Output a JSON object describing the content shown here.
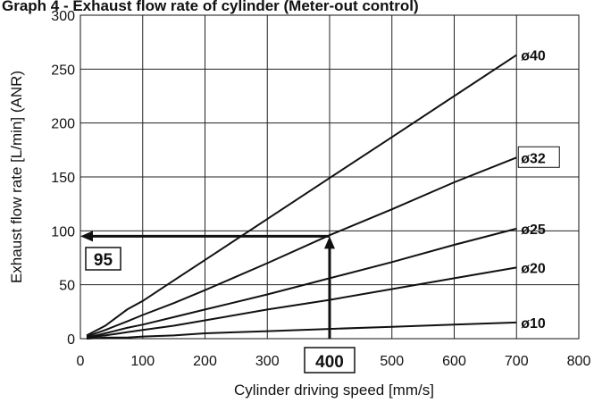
{
  "chart_data": {
    "type": "line",
    "title": "Graph 4 - Exhaust flow rate of cylinder (Meter-out control)",
    "xlabel": "Cylinder driving speed [mm/s]",
    "ylabel": "Exhaust flow rate [L/min] (ANR)",
    "xlim": [
      0,
      800
    ],
    "ylim": [
      0,
      300
    ],
    "x_ticks": [
      "0",
      "100",
      "200",
      "300",
      "400",
      "500",
      "600",
      "700",
      "800"
    ],
    "y_ticks": [
      "0",
      "50",
      "100",
      "150",
      "200",
      "250",
      "300"
    ],
    "grid": true,
    "series": [
      {
        "name": "ø40",
        "x": [
          10,
          40,
          75,
          100,
          150,
          200,
          300,
          400,
          500,
          600,
          700
        ],
        "y": [
          3,
          12,
          27,
          35,
          54,
          73,
          111,
          149,
          187,
          225,
          263
        ]
      },
      {
        "name": "ø32",
        "x": [
          10,
          40,
          75,
          100,
          150,
          200,
          300,
          400,
          500,
          600,
          700
        ],
        "y": [
          2,
          8,
          16,
          22,
          33,
          45,
          70,
          96,
          120,
          145,
          168
        ]
      },
      {
        "name": "ø25",
        "x": [
          10,
          40,
          75,
          100,
          150,
          200,
          300,
          400,
          500,
          600,
          700
        ],
        "y": [
          1,
          5,
          10,
          13,
          20,
          27,
          41,
          56,
          71,
          87,
          102
        ]
      },
      {
        "name": "ø20",
        "x": [
          10,
          40,
          75,
          100,
          150,
          200,
          300,
          400,
          500,
          600,
          700
        ],
        "y": [
          1,
          3,
          6,
          8,
          12,
          17,
          27,
          36,
          46,
          56,
          66
        ]
      },
      {
        "name": "ø10",
        "x": [
          10,
          40,
          75,
          100,
          150,
          200,
          300,
          400,
          500,
          600,
          700
        ],
        "y": [
          0,
          1,
          1,
          2,
          3,
          5,
          7,
          9,
          11,
          13,
          15
        ]
      }
    ],
    "annotation": {
      "x_value": "400",
      "y_value": "95",
      "x": 400,
      "y": 95
    }
  }
}
